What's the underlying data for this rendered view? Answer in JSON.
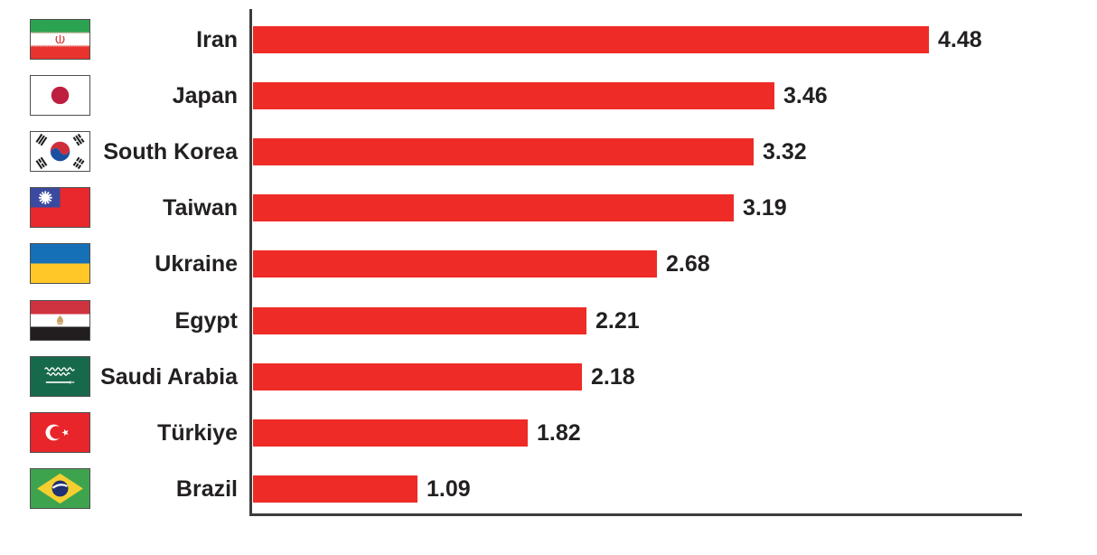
{
  "chart_data": {
    "type": "bar",
    "orientation": "horizontal",
    "title": "",
    "xlabel": "",
    "ylabel": "",
    "categories": [
      "Iran",
      "Japan",
      "South Korea",
      "Taiwan",
      "Ukraine",
      "Egypt",
      "Saudi Arabia",
      "Türkiye",
      "Brazil"
    ],
    "values": [
      4.48,
      3.46,
      3.32,
      3.19,
      2.68,
      2.21,
      2.18,
      1.82,
      1.09
    ],
    "value_labels": [
      "4.48",
      "3.46",
      "3.32",
      "3.19",
      "2.68",
      "2.21",
      "2.18",
      "1.82",
      "1.09"
    ],
    "flags": [
      "iran",
      "japan",
      "south-korea",
      "taiwan",
      "ukraine",
      "egypt",
      "saudi-arabia",
      "turkiye",
      "brazil"
    ],
    "xlim": [
      0,
      5.1
    ],
    "grid": false,
    "legend": false,
    "bar_color": "#EE2B26",
    "axis_color": "#3C3C3C",
    "text_color": "#232021"
  }
}
